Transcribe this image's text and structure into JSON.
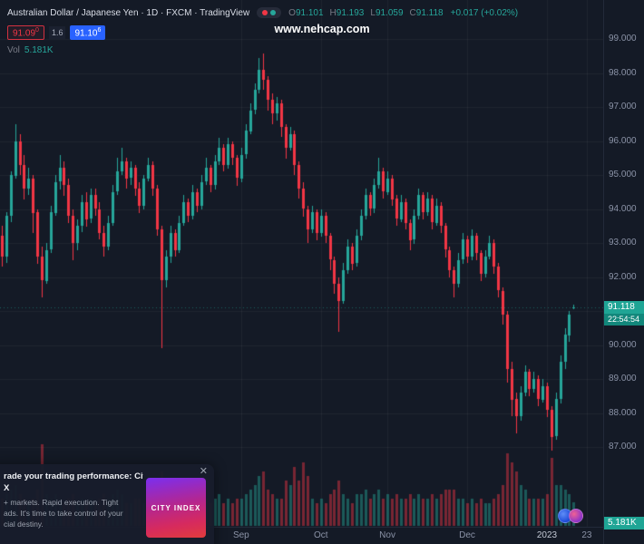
{
  "header": {
    "title": "Australian Dollar / Japanese Yen · 1D · FXCM · TradingView",
    "ohlc": {
      "o_label": "O",
      "o": "91.101",
      "h_label": "H",
      "h": "91.193",
      "l_label": "L",
      "l": "91.059",
      "c_label": "C",
      "c": "91.118",
      "change": "+0.017 (+0.02%)"
    },
    "quote": {
      "sell_main": "91.09",
      "sell_sup": "0",
      "spread": "1.6",
      "buy_main": "91.10",
      "buy_sup": "6"
    },
    "volume_row": {
      "label": "Vol",
      "value": "5.181K"
    }
  },
  "watermark": "www.nehcap.com",
  "price_axis": {
    "last_price_tag": "91.118",
    "countdown": "22:54:54",
    "volume_tag": "5.181K"
  },
  "ad": {
    "headline": [
      "rade your trading performance: City",
      "X"
    ],
    "body": [
      "+ markets. Rapid execution. Tight",
      "ads. It's time to take control of your",
      "cial destiny."
    ],
    "tile_text": "CITY INDEX"
  },
  "icons": {
    "close": "✕"
  },
  "chart_data": {
    "type": "candlestick",
    "series_name": "AUD/JPY, 1D, FXCM",
    "up_color": "#26a69a",
    "down_color": "#f23645",
    "last_price": 91.118,
    "last_volume_k": 5.181,
    "volume_unit": "K",
    "price_tick_labels": [
      "99.000",
      "98.000",
      "97.000",
      "96.000",
      "95.000",
      "94.000",
      "93.000",
      "92.000",
      "91.000",
      "90.000",
      "89.000",
      "88.000",
      "87.000"
    ],
    "time_tick_labels": [
      {
        "text": "Sep",
        "index": 54
      },
      {
        "text": "Oct",
        "index": 72
      },
      {
        "text": "Nov",
        "index": 87
      },
      {
        "text": "Dec",
        "index": 105
      },
      {
        "text": "2023",
        "index": 123,
        "major": true
      },
      {
        "text": "23",
        "index": 132
      }
    ],
    "columns": [
      "open",
      "high",
      "low",
      "close",
      "volume_k"
    ],
    "candles": [
      [
        93.2,
        93.5,
        92.3,
        92.6,
        6
      ],
      [
        92.6,
        93.9,
        92.4,
        93.8,
        7
      ],
      [
        93.8,
        95.1,
        93.6,
        95.0,
        8
      ],
      [
        95.0,
        96.5,
        94.9,
        96.0,
        9
      ],
      [
        96.0,
        96.2,
        95.0,
        95.3,
        7
      ],
      [
        95.3,
        95.6,
        94.3,
        94.6,
        6
      ],
      [
        94.6,
        95.2,
        94.4,
        94.9,
        5
      ],
      [
        94.9,
        95.0,
        93.3,
        93.9,
        6
      ],
      [
        93.9,
        94.0,
        92.4,
        92.6,
        8
      ],
      [
        92.6,
        92.9,
        91.4,
        91.9,
        18
      ],
      [
        91.9,
        93.0,
        91.8,
        92.8,
        7
      ],
      [
        92.8,
        94.1,
        92.7,
        93.9,
        6
      ],
      [
        93.9,
        95.0,
        93.8,
        94.8,
        7
      ],
      [
        94.8,
        95.6,
        94.6,
        95.2,
        6
      ],
      [
        95.2,
        95.4,
        94.4,
        94.7,
        5
      ],
      [
        94.7,
        94.9,
        93.6,
        93.8,
        6
      ],
      [
        93.8,
        94.0,
        92.5,
        93.0,
        7
      ],
      [
        93.0,
        93.7,
        92.8,
        93.5,
        5
      ],
      [
        93.5,
        94.4,
        93.3,
        94.2,
        6
      ],
      [
        94.2,
        94.5,
        93.5,
        93.7,
        5
      ],
      [
        93.7,
        94.6,
        93.6,
        94.4,
        6
      ],
      [
        94.4,
        94.6,
        93.8,
        94.0,
        5
      ],
      [
        94.0,
        94.2,
        93.1,
        93.3,
        6
      ],
      [
        93.3,
        93.5,
        92.6,
        92.9,
        7
      ],
      [
        92.9,
        93.8,
        92.8,
        93.6,
        6
      ],
      [
        93.6,
        94.7,
        93.5,
        94.5,
        7
      ],
      [
        94.5,
        95.5,
        94.4,
        95.1,
        8
      ],
      [
        95.1,
        95.8,
        95.0,
        95.4,
        7
      ],
      [
        95.4,
        95.5,
        94.6,
        94.9,
        5
      ],
      [
        94.9,
        95.4,
        94.7,
        95.2,
        5
      ],
      [
        95.2,
        95.3,
        94.4,
        94.6,
        6
      ],
      [
        94.6,
        94.8,
        93.9,
        94.1,
        6
      ],
      [
        94.1,
        95.0,
        94.0,
        94.9,
        5
      ],
      [
        94.9,
        95.5,
        94.8,
        95.3,
        6
      ],
      [
        95.3,
        95.4,
        94.4,
        94.6,
        6
      ],
      [
        94.6,
        94.7,
        93.2,
        93.4,
        8
      ],
      [
        93.4,
        93.5,
        89.9,
        91.9,
        12
      ],
      [
        91.9,
        92.8,
        91.7,
        92.6,
        8
      ],
      [
        92.6,
        93.5,
        92.4,
        93.3,
        6
      ],
      [
        93.3,
        93.4,
        92.6,
        92.8,
        5
      ],
      [
        92.8,
        93.8,
        92.7,
        93.6,
        5
      ],
      [
        93.6,
        94.4,
        93.5,
        94.2,
        6
      ],
      [
        94.2,
        94.3,
        93.6,
        93.8,
        5
      ],
      [
        93.8,
        94.7,
        93.7,
        94.5,
        6
      ],
      [
        94.5,
        94.6,
        93.9,
        94.1,
        5
      ],
      [
        94.1,
        95.0,
        94.0,
        94.8,
        6
      ],
      [
        94.8,
        95.5,
        94.7,
        95.2,
        6
      ],
      [
        95.2,
        95.3,
        94.5,
        94.7,
        5
      ],
      [
        94.7,
        95.6,
        94.6,
        95.4,
        6
      ],
      [
        95.4,
        96.1,
        95.3,
        95.8,
        7
      ],
      [
        95.8,
        95.9,
        95.1,
        95.3,
        5
      ],
      [
        95.3,
        96.1,
        95.2,
        95.9,
        6
      ],
      [
        95.9,
        96.0,
        95.3,
        95.5,
        5
      ],
      [
        95.5,
        95.6,
        94.7,
        94.9,
        6
      ],
      [
        94.9,
        95.8,
        94.8,
        95.6,
        6
      ],
      [
        95.6,
        96.5,
        95.5,
        96.3,
        7
      ],
      [
        96.3,
        97.1,
        96.2,
        96.9,
        8
      ],
      [
        96.9,
        97.7,
        96.8,
        97.5,
        9
      ],
      [
        97.5,
        98.45,
        97.4,
        98.1,
        11
      ],
      [
        98.1,
        98.58,
        97.5,
        97.8,
        12
      ],
      [
        97.8,
        97.9,
        96.9,
        97.2,
        8
      ],
      [
        97.2,
        97.4,
        96.5,
        96.8,
        7
      ],
      [
        96.8,
        97.3,
        96.6,
        97.1,
        6
      ],
      [
        97.1,
        97.2,
        96.1,
        96.4,
        6
      ],
      [
        96.4,
        96.5,
        95.5,
        95.8,
        10
      ],
      [
        95.8,
        96.4,
        95.7,
        96.2,
        9
      ],
      [
        96.2,
        96.3,
        95.0,
        95.3,
        13
      ],
      [
        95.3,
        95.4,
        94.3,
        94.6,
        10
      ],
      [
        94.6,
        94.8,
        93.8,
        94.0,
        14
      ],
      [
        94.0,
        94.1,
        93.0,
        93.4,
        11
      ],
      [
        93.4,
        94.1,
        93.3,
        93.9,
        6
      ],
      [
        93.9,
        94.0,
        93.1,
        93.3,
        5
      ],
      [
        93.3,
        94.0,
        93.2,
        93.8,
        6
      ],
      [
        93.8,
        93.9,
        93.0,
        93.2,
        5
      ],
      [
        93.2,
        93.3,
        92.2,
        92.5,
        7
      ],
      [
        92.5,
        92.6,
        91.5,
        91.8,
        8
      ],
      [
        91.8,
        92.0,
        90.4,
        91.3,
        10
      ],
      [
        91.3,
        92.4,
        91.2,
        92.2,
        7
      ],
      [
        92.2,
        93.1,
        92.1,
        92.9,
        6
      ],
      [
        92.9,
        93.0,
        92.2,
        92.4,
        5
      ],
      [
        92.4,
        93.4,
        92.3,
        93.2,
        7
      ],
      [
        93.2,
        94.0,
        93.1,
        93.8,
        7
      ],
      [
        93.8,
        94.6,
        93.7,
        94.4,
        8
      ],
      [
        94.4,
        94.5,
        93.8,
        94.0,
        6
      ],
      [
        94.0,
        94.9,
        93.9,
        94.7,
        7
      ],
      [
        94.7,
        95.5,
        94.6,
        95.1,
        8
      ],
      [
        95.1,
        95.2,
        94.3,
        94.5,
        6
      ],
      [
        94.5,
        95.1,
        94.4,
        94.9,
        7
      ],
      [
        94.9,
        95.0,
        94.1,
        94.3,
        6
      ],
      [
        94.3,
        94.4,
        93.5,
        93.7,
        7
      ],
      [
        93.7,
        94.4,
        93.6,
        94.2,
        6
      ],
      [
        94.2,
        94.3,
        93.4,
        93.6,
        6
      ],
      [
        93.6,
        93.7,
        92.8,
        93.1,
        7
      ],
      [
        93.1,
        94.0,
        93.0,
        93.8,
        6
      ],
      [
        93.8,
        94.6,
        93.7,
        94.4,
        7
      ],
      [
        94.4,
        94.5,
        93.7,
        93.9,
        6
      ],
      [
        93.9,
        94.5,
        93.8,
        94.3,
        6
      ],
      [
        94.3,
        94.4,
        93.4,
        93.6,
        7
      ],
      [
        93.6,
        94.3,
        93.5,
        94.1,
        6
      ],
      [
        94.1,
        94.2,
        93.3,
        93.5,
        7
      ],
      [
        93.5,
        93.6,
        92.6,
        92.8,
        8
      ],
      [
        92.8,
        92.9,
        92.0,
        92.2,
        8
      ],
      [
        92.2,
        92.3,
        91.4,
        91.8,
        8
      ],
      [
        91.8,
        92.7,
        91.7,
        92.5,
        6
      ],
      [
        92.5,
        93.3,
        92.4,
        93.1,
        6
      ],
      [
        93.1,
        93.2,
        92.4,
        92.6,
        5
      ],
      [
        92.6,
        93.4,
        92.5,
        93.2,
        6
      ],
      [
        93.2,
        93.3,
        92.5,
        92.7,
        5
      ],
      [
        92.7,
        92.8,
        91.9,
        92.1,
        6
      ],
      [
        92.1,
        92.8,
        92.0,
        92.6,
        5
      ],
      [
        92.6,
        93.2,
        92.5,
        93.0,
        5
      ],
      [
        93.0,
        93.1,
        92.1,
        92.3,
        6
      ],
      [
        92.3,
        92.4,
        91.4,
        91.6,
        7
      ],
      [
        91.6,
        91.7,
        90.6,
        90.9,
        9
      ],
      [
        90.9,
        91.0,
        88.9,
        89.3,
        16
      ],
      [
        89.3,
        89.5,
        87.9,
        88.4,
        14
      ],
      [
        88.4,
        88.6,
        87.4,
        87.9,
        12
      ],
      [
        87.9,
        88.8,
        87.8,
        88.6,
        9
      ],
      [
        88.6,
        89.4,
        88.5,
        89.2,
        8
      ],
      [
        89.2,
        89.3,
        88.5,
        88.7,
        6
      ],
      [
        88.7,
        89.2,
        88.6,
        89.0,
        6
      ],
      [
        89.0,
        89.1,
        88.2,
        88.4,
        6
      ],
      [
        88.4,
        89.0,
        88.3,
        88.8,
        6
      ],
      [
        88.8,
        88.9,
        87.9,
        88.1,
        7
      ],
      [
        88.1,
        88.2,
        86.9,
        87.3,
        15
      ],
      [
        87.3,
        88.6,
        87.2,
        88.4,
        9
      ],
      [
        88.4,
        89.7,
        88.3,
        89.5,
        9
      ],
      [
        89.5,
        90.5,
        89.3,
        90.3,
        8
      ],
      [
        90.3,
        91.0,
        90.1,
        90.9,
        7
      ],
      [
        91.101,
        91.193,
        91.059,
        91.118,
        5.181
      ]
    ]
  }
}
